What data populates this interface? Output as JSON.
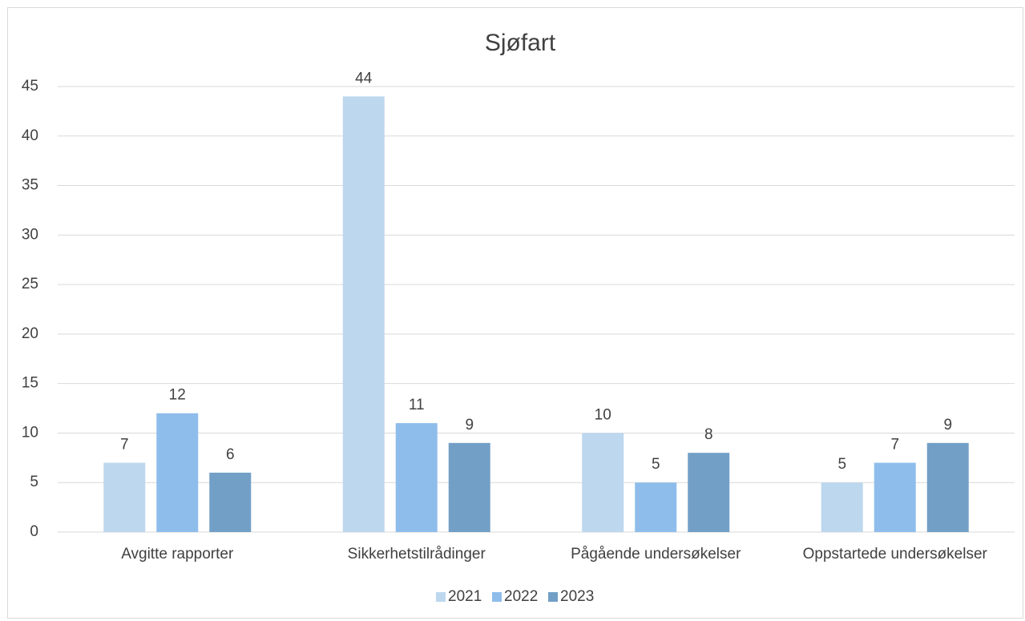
{
  "chart_data": {
    "type": "bar",
    "title": "Sjøfart",
    "categories": [
      "Avgitte rapporter",
      "Sikkerhetstilrådinger",
      "Pågående undersøkelser",
      "Oppstartede undersøkelser"
    ],
    "series": [
      {
        "name": "2021",
        "color": "#bdd7ee",
        "values": [
          7,
          44,
          10,
          5
        ]
      },
      {
        "name": "2022",
        "color": "#8fbdeb",
        "values": [
          12,
          11,
          5,
          7
        ]
      },
      {
        "name": "2023",
        "color": "#729fc6",
        "values": [
          6,
          9,
          8,
          9
        ]
      }
    ],
    "ylim": [
      0,
      45
    ],
    "yticks": [
      0,
      5,
      10,
      15,
      20,
      25,
      30,
      35,
      40,
      45
    ],
    "grid": true,
    "legend": "bottom"
  }
}
